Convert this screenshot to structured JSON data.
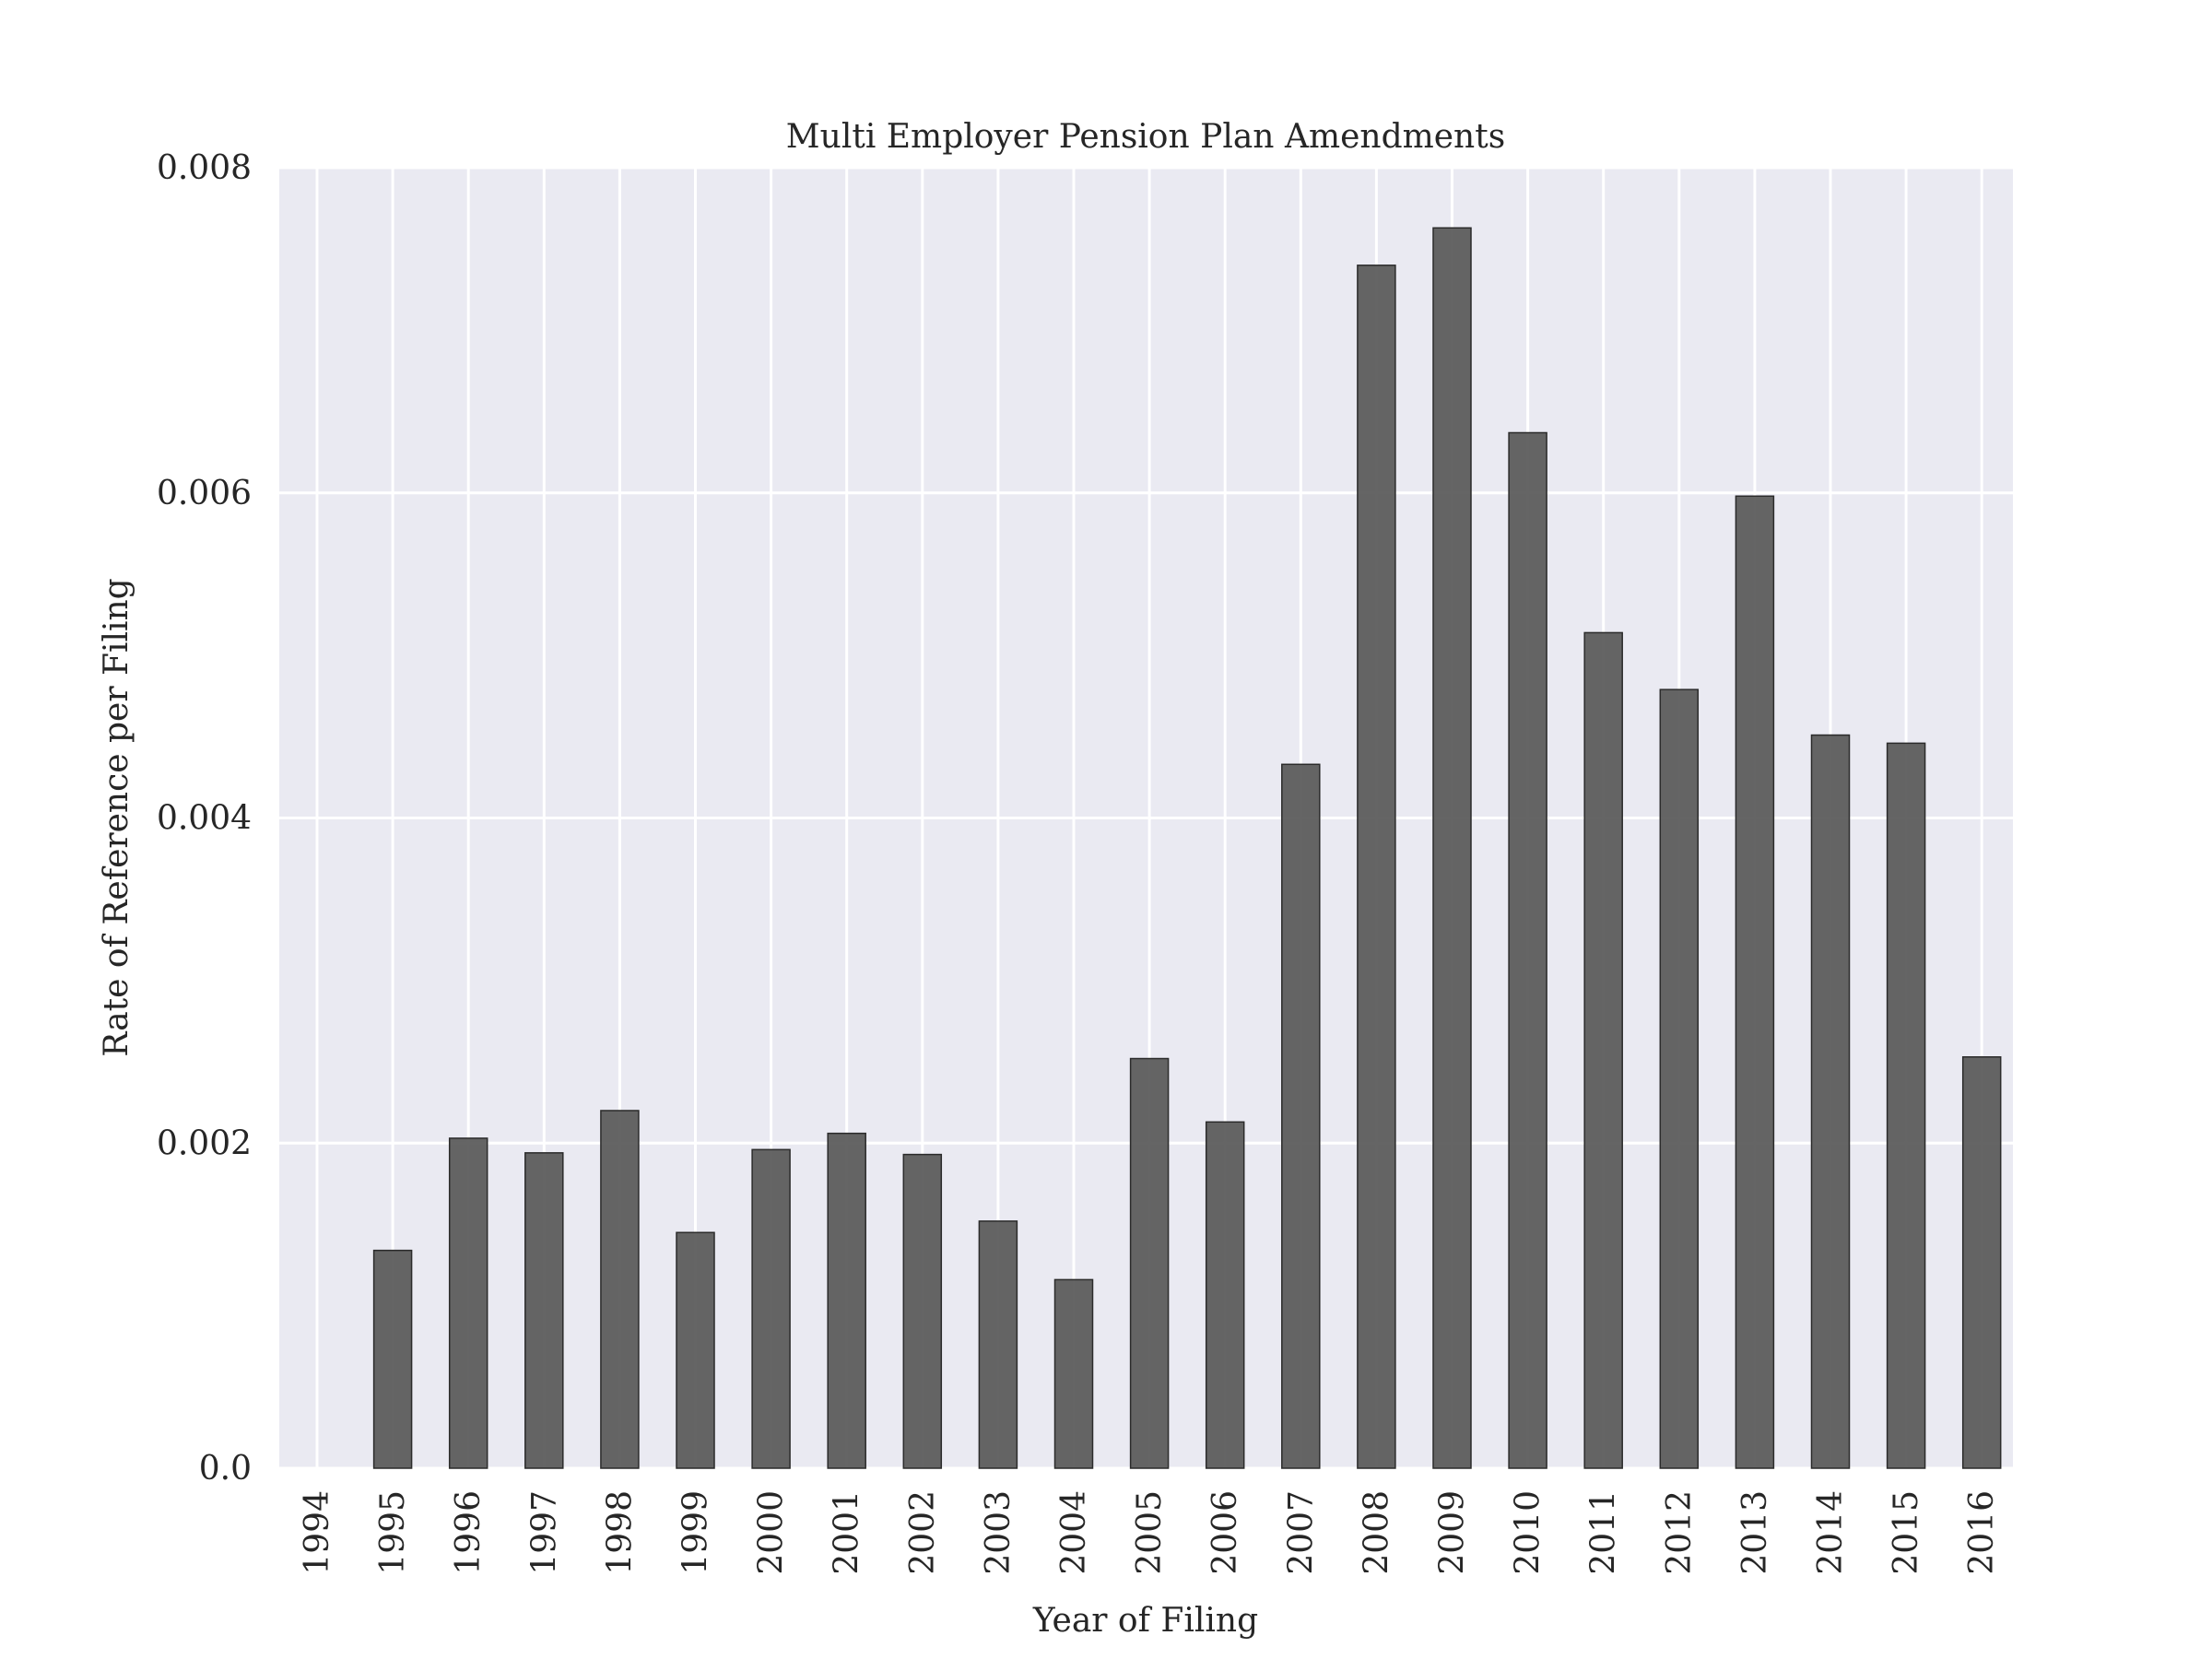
{
  "chart_data": {
    "type": "bar",
    "title": "Multi Employer Pension Plan Amendments",
    "xlabel": "Year of Filing",
    "ylabel": "Rate of Reference per Filing",
    "categories": [
      "1994",
      "1995",
      "1996",
      "1997",
      "1998",
      "1999",
      "2000",
      "2001",
      "2002",
      "2003",
      "2004",
      "2005",
      "2006",
      "2007",
      "2008",
      "2009",
      "2010",
      "2011",
      "2012",
      "2013",
      "2014",
      "2015",
      "2016"
    ],
    "values": [
      0.0,
      0.00134,
      0.00203,
      0.00194,
      0.0022,
      0.00145,
      0.00196,
      0.00206,
      0.00193,
      0.00152,
      0.00116,
      0.00252,
      0.00213,
      0.00433,
      0.0074,
      0.00763,
      0.00637,
      0.00514,
      0.00479,
      0.00598,
      0.00451,
      0.00446,
      0.00253
    ],
    "yticks": [
      {
        "value": 0.0,
        "label": "0.0"
      },
      {
        "value": 0.002,
        "label": "0.002"
      },
      {
        "value": 0.004,
        "label": "0.004"
      },
      {
        "value": 0.006,
        "label": "0.006"
      },
      {
        "value": 0.008,
        "label": "0.008"
      }
    ],
    "ylim": [
      0,
      0.008
    ],
    "grid": true,
    "colors": {
      "plot_background": "#eaeaf2",
      "bar_fill": "#595959",
      "grid": "#ffffff"
    }
  }
}
